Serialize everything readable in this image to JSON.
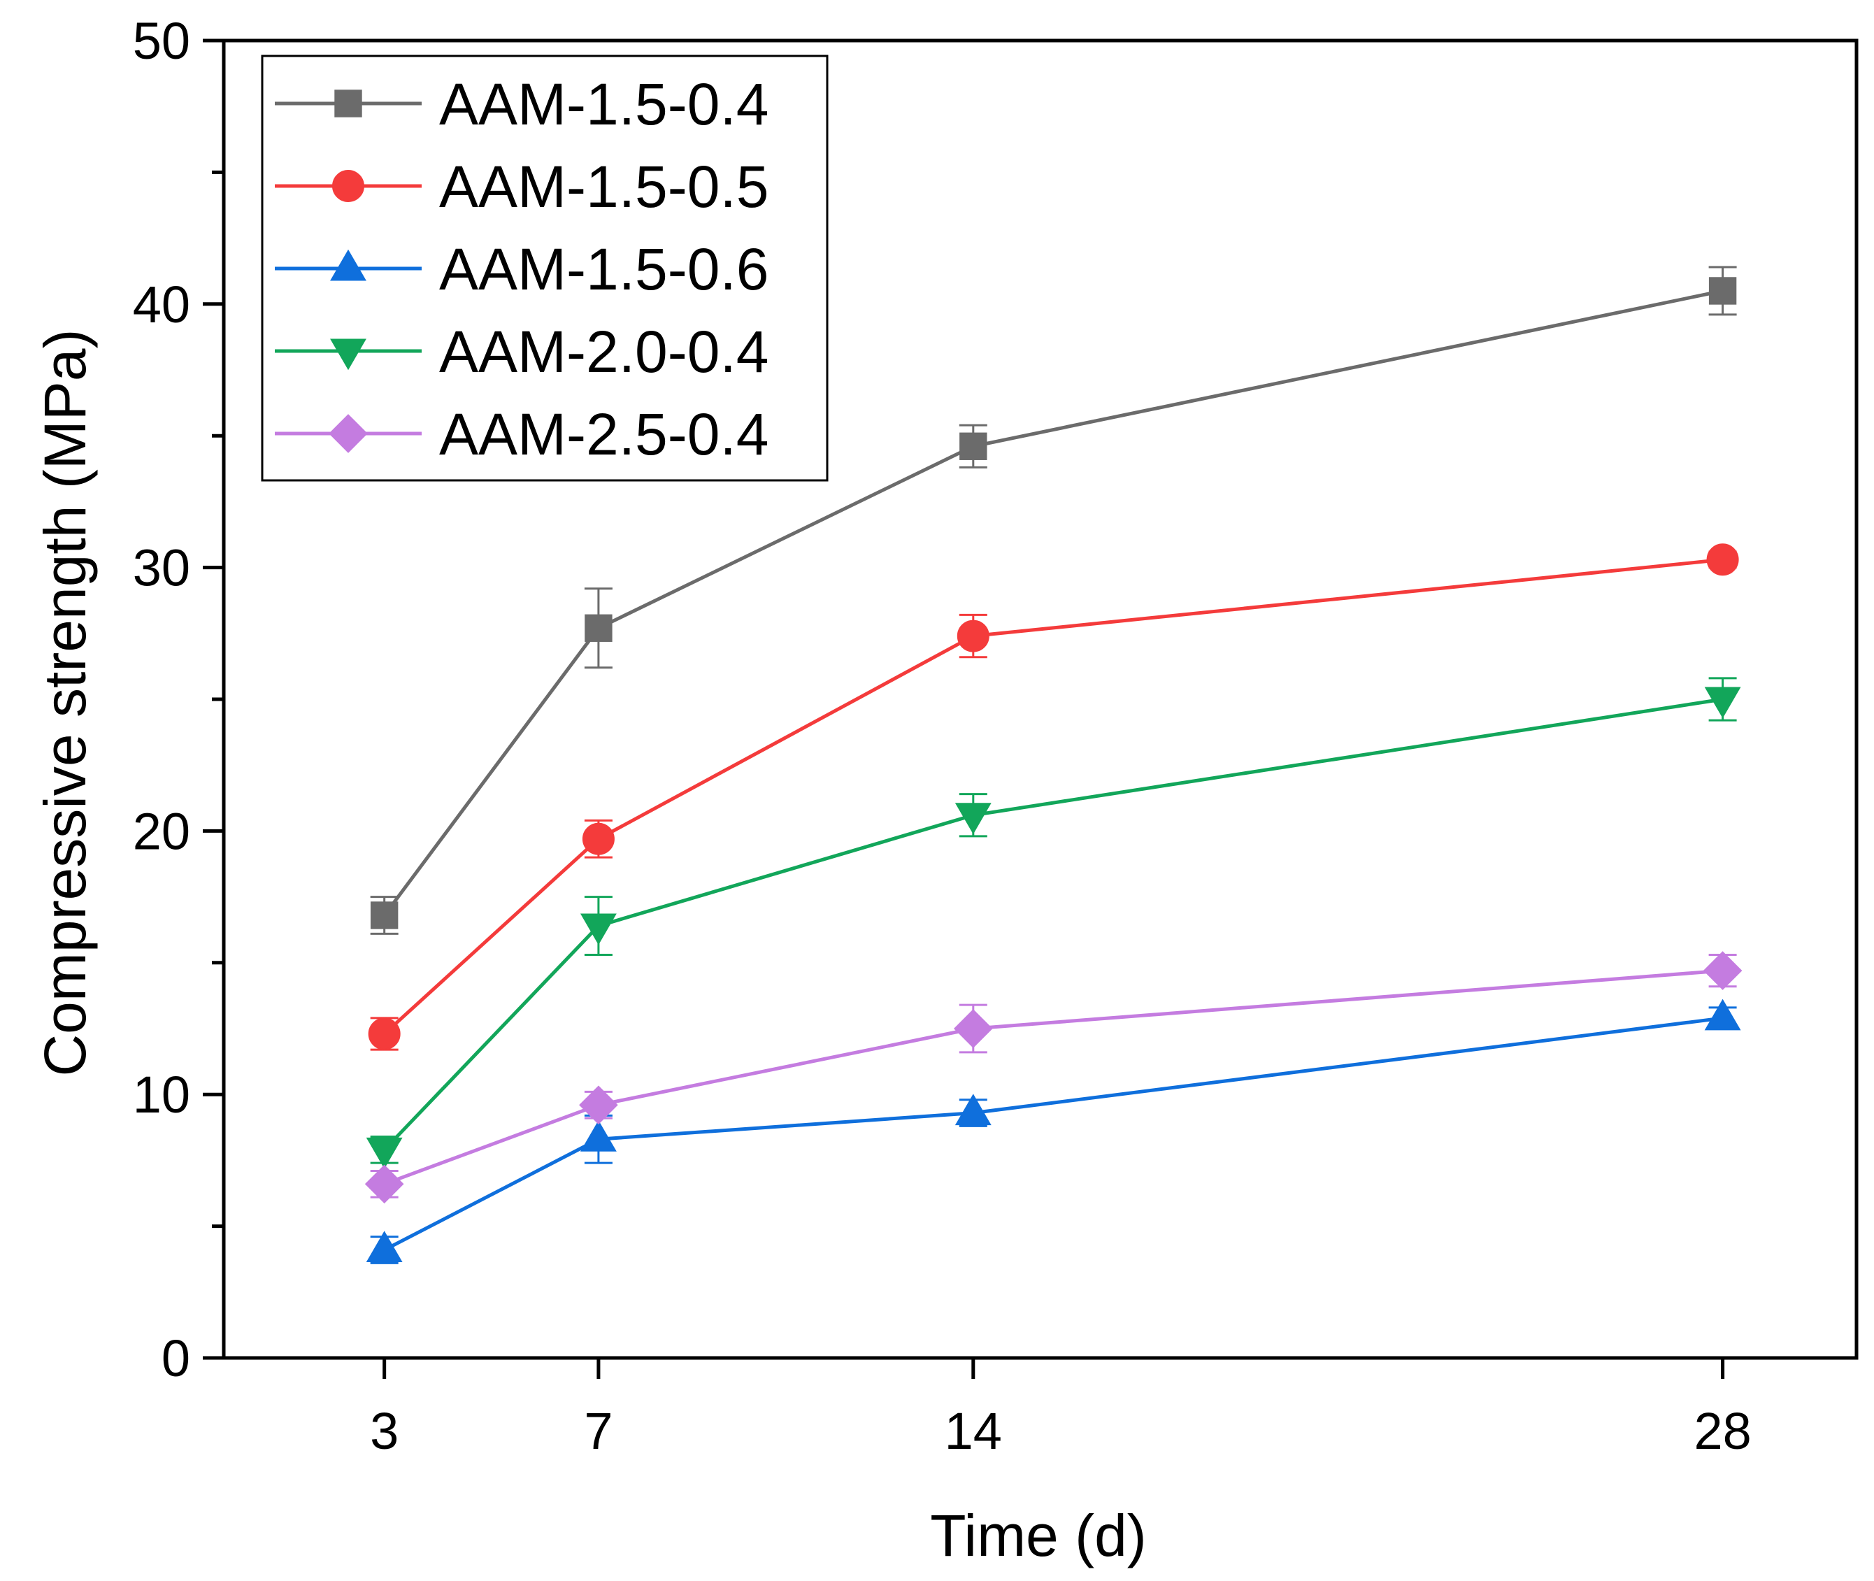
{
  "chart_data": {
    "type": "line",
    "title": "",
    "xlabel": "Time (d)",
    "ylabel": "Compressive strength (MPa)",
    "x": [
      3,
      7,
      14,
      28
    ],
    "x_tick_labels": [
      "3",
      "7",
      "14",
      "28"
    ],
    "xlim": [
      0,
      30.5
    ],
    "ylim": [
      0,
      50
    ],
    "y_ticks": [
      0,
      10,
      20,
      30,
      40,
      50
    ],
    "y_tick_labels": [
      "0",
      "10",
      "20",
      "30",
      "40",
      "50"
    ],
    "grid": false,
    "legend_position": "top-left",
    "series": [
      {
        "name": "AAM-1.5-0.4",
        "color": "#6b6b6b",
        "marker": "square",
        "values": [
          16.8,
          27.7,
          34.6,
          40.5
        ],
        "errors": [
          0.7,
          1.5,
          0.8,
          0.9
        ]
      },
      {
        "name": "AAM-1.5-0.5",
        "color": "#f43b3b",
        "marker": "circle",
        "values": [
          12.3,
          19.7,
          27.4,
          30.3
        ],
        "errors": [
          0.6,
          0.7,
          0.8,
          0.3
        ]
      },
      {
        "name": "AAM-1.5-0.6",
        "color": "#0f6fdc",
        "marker": "triangle-up",
        "values": [
          4.1,
          8.3,
          9.3,
          12.9
        ],
        "errors": [
          0.5,
          0.9,
          0.5,
          0.4
        ]
      },
      {
        "name": "AAM-2.0-0.4",
        "color": "#12a65a",
        "marker": "triangle-down",
        "values": [
          7.9,
          16.4,
          20.6,
          25.0
        ],
        "errors": [
          0.5,
          1.1,
          0.8,
          0.8
        ]
      },
      {
        "name": "AAM-2.5-0.4",
        "color": "#c47ce0",
        "marker": "diamond",
        "values": [
          6.6,
          9.6,
          12.5,
          14.7
        ],
        "errors": [
          0.5,
          0.5,
          0.9,
          0.6
        ]
      }
    ]
  }
}
